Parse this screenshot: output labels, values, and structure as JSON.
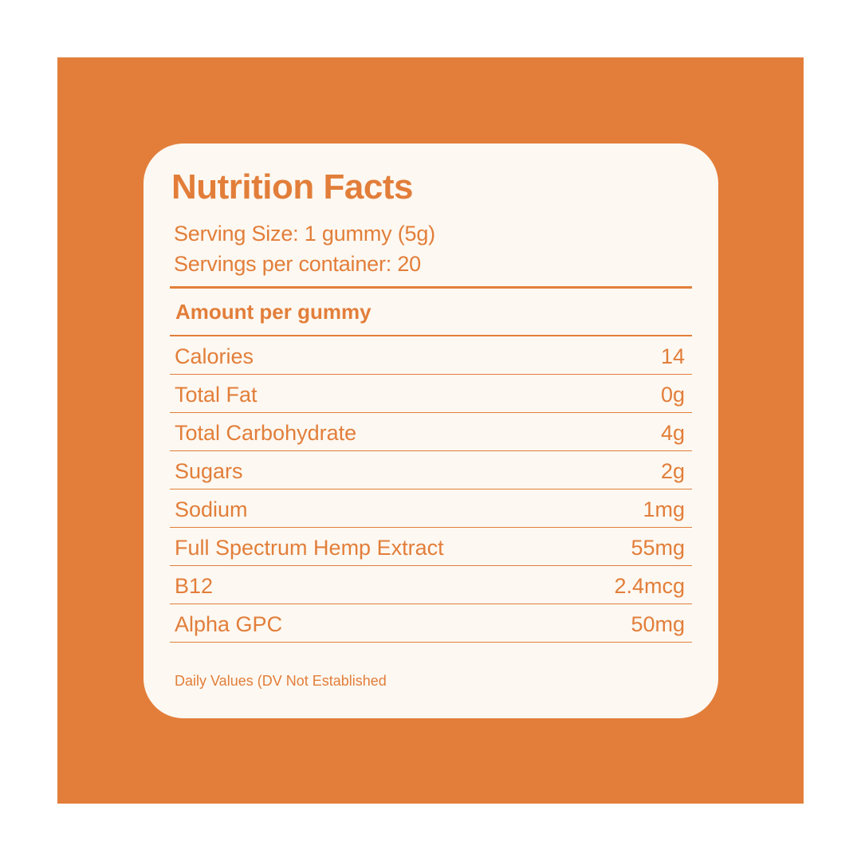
{
  "colors": {
    "background": "#E27E3A",
    "card": "#FDF8F1",
    "text": "#E27E3A"
  },
  "label": {
    "title": "Nutrition Facts",
    "serving_size": "Serving Size: 1 gummy (5g)",
    "servings_per_container": "Servings per container: 20",
    "amount_header": "Amount per gummy",
    "rows": [
      {
        "label": "Calories",
        "value": "14"
      },
      {
        "label": "Total Fat",
        "value": "0g"
      },
      {
        "label": "Total Carbohydrate",
        "value": "4g"
      },
      {
        "label": "Sugars",
        "value": "2g"
      },
      {
        "label": "Sodium",
        "value": "1mg"
      },
      {
        "label": "Full Spectrum Hemp Extract",
        "value": "55mg"
      },
      {
        "label": "B12",
        "value": "2.4mcg"
      },
      {
        "label": "Alpha GPC",
        "value": "50mg"
      }
    ],
    "footnote": "Daily Values (DV Not Established"
  }
}
